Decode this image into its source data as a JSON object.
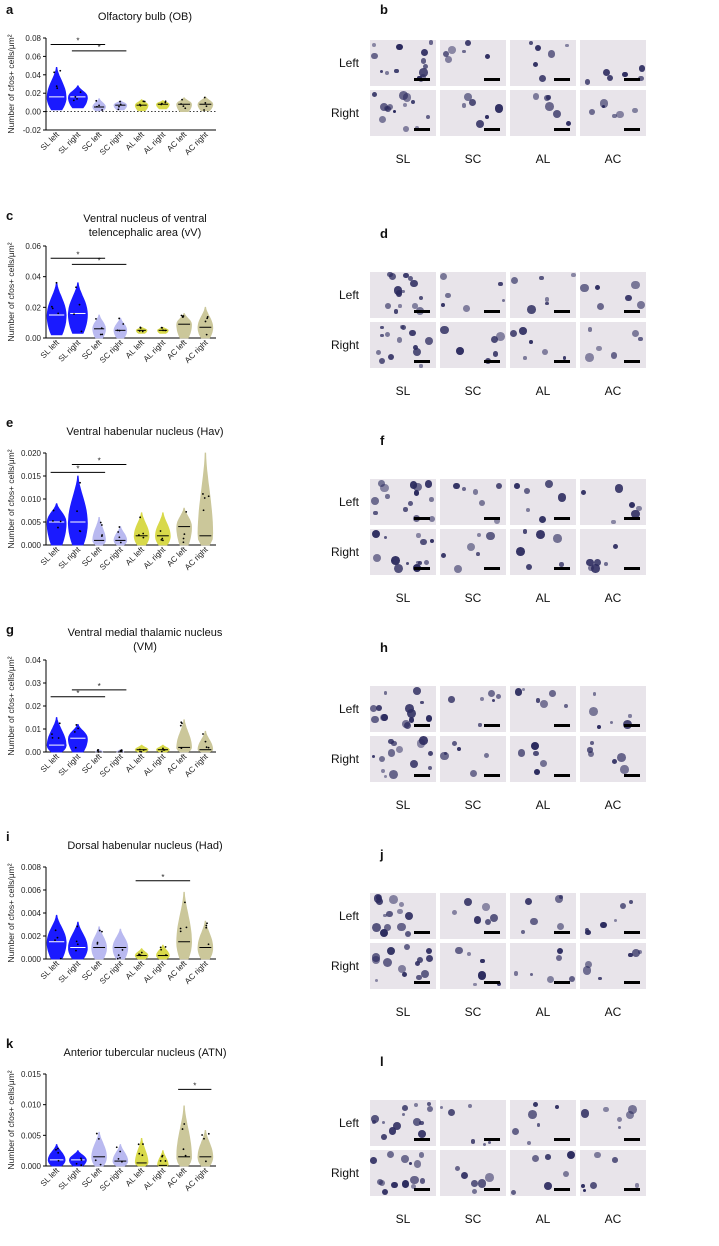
{
  "row_labels": [
    "Left",
    "Right"
  ],
  "col_labels": [
    "SL",
    "SC",
    "AL",
    "AC"
  ],
  "colors": {
    "SL": "#1a1aff",
    "SC": "#b9b9f0",
    "AL": "#d8d94a",
    "AC": "#cbc79a",
    "median": "#ffffff",
    "image_bg": "#e8e4ea",
    "stain": "#2b2a5e"
  },
  "ylabel": "Number of cfos+ cells/μm²",
  "chart_data": [
    {
      "letter": "a",
      "image_letter": "b",
      "type": "violin",
      "title": "Olfactory bulb (OB)",
      "categories": [
        "SL left",
        "SL right",
        "SC left",
        "SC right",
        "AL left",
        "AL right",
        "AC left",
        "AC right"
      ],
      "ylim": [
        -0.02,
        0.08
      ],
      "yticks": [
        "-0.02",
        "0.00",
        "0.02",
        "0.04",
        "0.06",
        "0.08"
      ],
      "ytick_values": [
        -0.02,
        0.0,
        0.02,
        0.04,
        0.06,
        0.08
      ],
      "dotted_zero": true,
      "medians": [
        0.016,
        0.016,
        0.005,
        0.007,
        0.007,
        0.008,
        0.008,
        0.008
      ],
      "maxes": [
        0.048,
        0.028,
        0.014,
        0.012,
        0.013,
        0.012,
        0.015,
        0.016
      ],
      "mins": [
        0.002,
        0.004,
        0.001,
        0.002,
        0.001,
        0.003,
        0.0,
        0.001
      ],
      "widths": [
        0.9,
        0.9,
        0.6,
        0.6,
        0.6,
        0.6,
        0.7,
        0.7
      ],
      "sig": [
        {
          "from": 0,
          "to": 2,
          "y": 0.073,
          "label": "*"
        },
        {
          "from": 1,
          "to": 3,
          "y": 0.066,
          "label": "*"
        }
      ]
    },
    {
      "letter": "c",
      "image_letter": "d",
      "type": "violin",
      "title": "Ventral nucleus of ventral telencephalic area (vV)",
      "categories": [
        "SL left",
        "SL right",
        "SC left",
        "SC right",
        "AL left",
        "AL right",
        "AC left",
        "AC right"
      ],
      "ylim": [
        0.0,
        0.06
      ],
      "yticks": [
        "0.00",
        "0.02",
        "0.04",
        "0.06"
      ],
      "ytick_values": [
        0.0,
        0.02,
        0.04,
        0.06
      ],
      "dotted_zero": false,
      "medians": [
        0.015,
        0.016,
        0.006,
        0.005,
        0.005,
        0.005,
        0.009,
        0.007
      ],
      "maxes": [
        0.036,
        0.036,
        0.015,
        0.013,
        0.007,
        0.007,
        0.016,
        0.02
      ],
      "mins": [
        0.002,
        0.003,
        0.0,
        0.0,
        0.003,
        0.003,
        0.0,
        0.0
      ],
      "widths": [
        0.9,
        0.9,
        0.6,
        0.6,
        0.5,
        0.5,
        0.7,
        0.7
      ],
      "sig": [
        {
          "from": 0,
          "to": 2,
          "y": 0.052,
          "label": "*"
        },
        {
          "from": 1,
          "to": 3,
          "y": 0.048,
          "label": "*"
        }
      ]
    },
    {
      "letter": "e",
      "image_letter": "f",
      "type": "violin",
      "title": "Ventral habenular nucleus (Hav)",
      "categories": [
        "SL left",
        "SL right",
        "SC left",
        "SC right",
        "AL left",
        "AL right",
        "AC left",
        "AC right"
      ],
      "ylim": [
        0.0,
        0.02
      ],
      "yticks": [
        "0.000",
        "0.005",
        "0.010",
        "0.015",
        "0.020"
      ],
      "ytick_values": [
        0.0,
        0.005,
        0.01,
        0.015,
        0.02
      ],
      "dotted_zero": false,
      "medians": [
        0.005,
        0.005,
        0.001,
        0.001,
        0.002,
        0.002,
        0.004,
        0.002
      ],
      "maxes": [
        0.009,
        0.015,
        0.006,
        0.004,
        0.007,
        0.007,
        0.008,
        0.02
      ],
      "mins": [
        0.0,
        0.0,
        0.0,
        0.0,
        0.0,
        0.0,
        0.0,
        0.0
      ],
      "widths": [
        0.9,
        0.9,
        0.6,
        0.6,
        0.7,
        0.7,
        0.7,
        0.7
      ],
      "sig": [
        {
          "from": 0,
          "to": 2,
          "y": 0.0158,
          "label": "*"
        },
        {
          "from": 1,
          "to": 3,
          "y": 0.0175,
          "label": "*"
        }
      ]
    },
    {
      "letter": "g",
      "image_letter": "h",
      "type": "violin",
      "title": "Ventral medial thalamic nucleus (VM)",
      "categories": [
        "SL left",
        "SL right",
        "SC left",
        "SC right",
        "AL left",
        "AL right",
        "AC left",
        "AC right"
      ],
      "ylim": [
        0.0,
        0.04
      ],
      "yticks": [
        "0.00",
        "0.01",
        "0.02",
        "0.03",
        "0.04"
      ],
      "ytick_values": [
        0.0,
        0.01,
        0.02,
        0.03,
        0.04
      ],
      "dotted_zero": false,
      "medians": [
        0.003,
        0.006,
        0.0,
        0.0,
        0.001,
        0.001,
        0.002,
        0.001
      ],
      "maxes": [
        0.015,
        0.012,
        0.001,
        0.001,
        0.003,
        0.003,
        0.014,
        0.009
      ],
      "mins": [
        0.0,
        0.0,
        0.0,
        0.0,
        0.0,
        0.0,
        0.0,
        0.0
      ],
      "widths": [
        0.9,
        0.9,
        0.3,
        0.3,
        0.6,
        0.6,
        0.7,
        0.7
      ],
      "sig": [
        {
          "from": 0,
          "to": 2,
          "y": 0.024,
          "label": "*"
        },
        {
          "from": 1,
          "to": 3,
          "y": 0.027,
          "label": "*"
        }
      ]
    },
    {
      "letter": "i",
      "image_letter": "j",
      "type": "violin",
      "title": "Dorsal habenular nucleus (Had)",
      "categories": [
        "SL left",
        "SL right",
        "SC left",
        "SC right",
        "AL left",
        "AL right",
        "AC left",
        "AC right"
      ],
      "ylim": [
        0.0,
        0.008
      ],
      "yticks": [
        "0.000",
        "0.002",
        "0.004",
        "0.006",
        "0.008"
      ],
      "ytick_values": [
        0.0,
        0.002,
        0.004,
        0.006,
        0.008
      ],
      "dotted_zero": false,
      "medians": [
        0.0015,
        0.001,
        0.001,
        0.001,
        0.0003,
        0.0003,
        0.0015,
        0.001
      ],
      "maxes": [
        0.0038,
        0.0032,
        0.0028,
        0.0026,
        0.0009,
        0.0012,
        0.0058,
        0.0033
      ],
      "mins": [
        0.0,
        0.0,
        0.0,
        0.0,
        0.0,
        0.0,
        0.0,
        0.0
      ],
      "widths": [
        0.9,
        0.9,
        0.7,
        0.7,
        0.6,
        0.6,
        0.7,
        0.7
      ],
      "sig": [
        {
          "from": 4,
          "to": 6,
          "y": 0.0068,
          "label": "*"
        }
      ]
    },
    {
      "letter": "k",
      "image_letter": "l",
      "type": "violin",
      "title": "Anterior tubercular nucleus (ATN)",
      "categories": [
        "SL left",
        "SL right",
        "SC left",
        "SC right",
        "AL left",
        "AL right",
        "AC left",
        "AC right"
      ],
      "ylim": [
        0.0,
        0.015
      ],
      "yticks": [
        "0.000",
        "0.005",
        "0.010",
        "0.015"
      ],
      "ytick_values": [
        0.0,
        0.005,
        0.01,
        0.015
      ],
      "dotted_zero": false,
      "medians": [
        0.001,
        0.001,
        0.0015,
        0.0008,
        0.0005,
        0.0001,
        0.0015,
        0.0015
      ],
      "maxes": [
        0.0035,
        0.0025,
        0.0055,
        0.0035,
        0.0045,
        0.0025,
        0.0098,
        0.0058
      ],
      "mins": [
        0.0,
        0.0,
        0.0,
        0.0,
        0.0,
        0.0,
        0.0,
        0.0
      ],
      "widths": [
        0.8,
        0.8,
        0.7,
        0.7,
        0.6,
        0.5,
        0.7,
        0.7
      ],
      "sig": [
        {
          "from": 6,
          "to": 7,
          "y": 0.0125,
          "label": "*"
        }
      ]
    }
  ]
}
